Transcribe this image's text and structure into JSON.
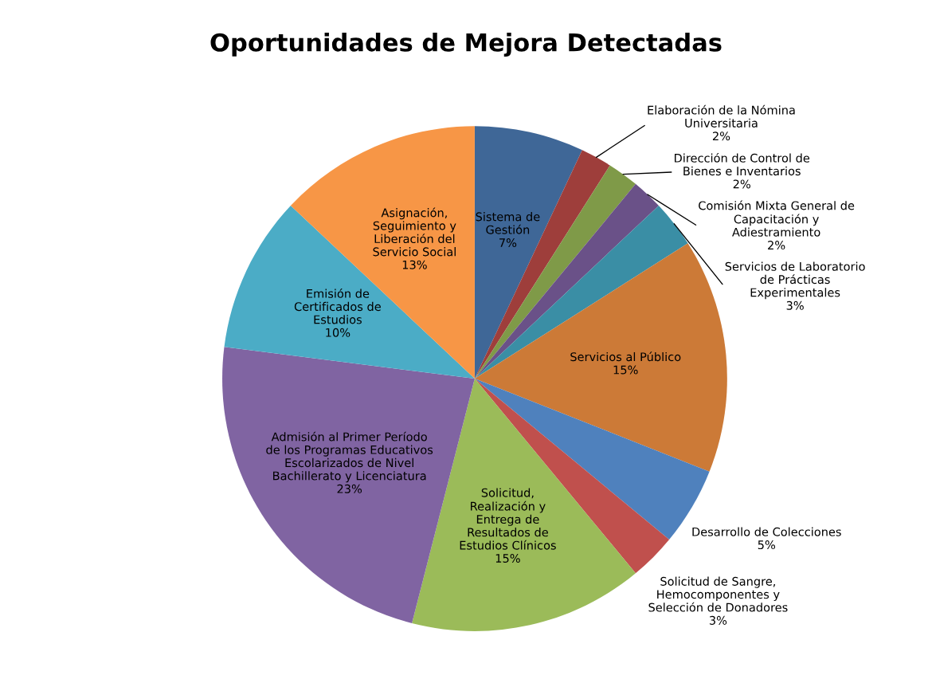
{
  "chart_data": {
    "type": "pie",
    "title": "Oportunidades de Mejora Detectadas",
    "categories": [
      "Sistema de Gestión",
      "Elaboración de la Nómina Universitaria",
      "Dirección de Control de Bienes e Inventarios",
      "Comisión Mixta General de Capacitación y Adiestramiento",
      "Servicios de Laboratorio de Prácticas Experimentales",
      "Servicios al Público",
      "Desarrollo de Colecciones",
      "Solicitud de Sangre, Hemocomponentes y Selección de Donadores",
      "Solicitud, Realización y Entrega de Resultados de Estudios Clínicos",
      "Admisión al Primer Período de los Programas Educativos Escolarizados de Nivel Bachillerato y Licenciatura",
      "Emisión de Certificados de Estudios",
      "Asignación, Seguimiento y Liberación del Servicio Social"
    ],
    "values": [
      7,
      2,
      2,
      2,
      3,
      15,
      5,
      3,
      15,
      23,
      10,
      13
    ],
    "value_labels": [
      "7%",
      "2%",
      "2%",
      "2%",
      "3%",
      "15%",
      "5%",
      "3%",
      "15%",
      "23%",
      "10%",
      "13%"
    ],
    "colors": [
      "#3f6797",
      "#9e3e3b",
      "#7f9a48",
      "#6a5188",
      "#3a8ea5",
      "#cc7a37",
      "#4f81bd",
      "#c0504d",
      "#9bbb59",
      "#8064a2",
      "#4bacc6",
      "#f79646"
    ],
    "data_labels": true,
    "legend": false
  }
}
